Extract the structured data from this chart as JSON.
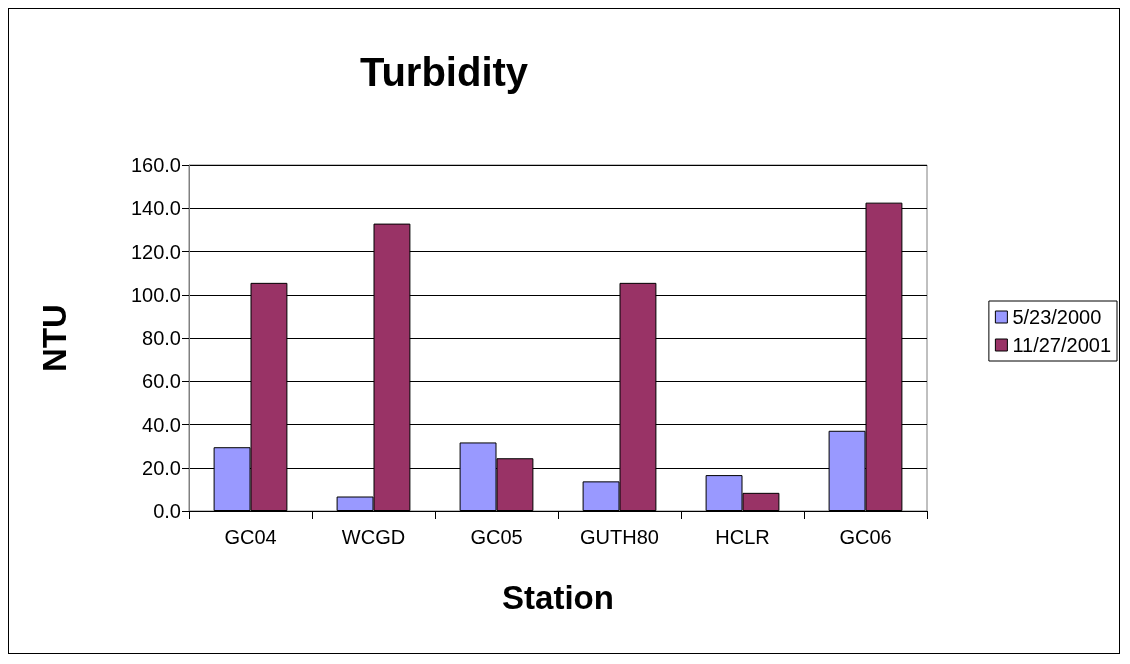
{
  "chart_data": {
    "type": "bar",
    "title": "Turbidity",
    "xlabel": "Station",
    "ylabel": "NTU",
    "categories": [
      "GC04",
      "WCGD",
      "GC05",
      "GUTH80",
      "HCLR",
      "GC06"
    ],
    "series": [
      {
        "name": "5/23/2000",
        "color": "#9999ff",
        "values": [
          29.5,
          6.7,
          31.7,
          13.7,
          16.6,
          37.1
        ]
      },
      {
        "name": "11/27/2001",
        "color": "#993366",
        "values": [
          105.5,
          132.9,
          24.4,
          105.5,
          8.4,
          142.6
        ]
      }
    ],
    "ylim": [
      0,
      160
    ],
    "yticks": [
      {
        "value": 0,
        "label": "0.0"
      },
      {
        "value": 20,
        "label": "20.0"
      },
      {
        "value": 40,
        "label": "40.0"
      },
      {
        "value": 60,
        "label": "60.0"
      },
      {
        "value": 80,
        "label": "80.0"
      },
      {
        "value": 100,
        "label": "100.0"
      },
      {
        "value": 120,
        "label": "120.0"
      },
      {
        "value": 140,
        "label": "140.0"
      },
      {
        "value": 160,
        "label": "160.0"
      }
    ],
    "grid": "y",
    "legend": "right"
  }
}
